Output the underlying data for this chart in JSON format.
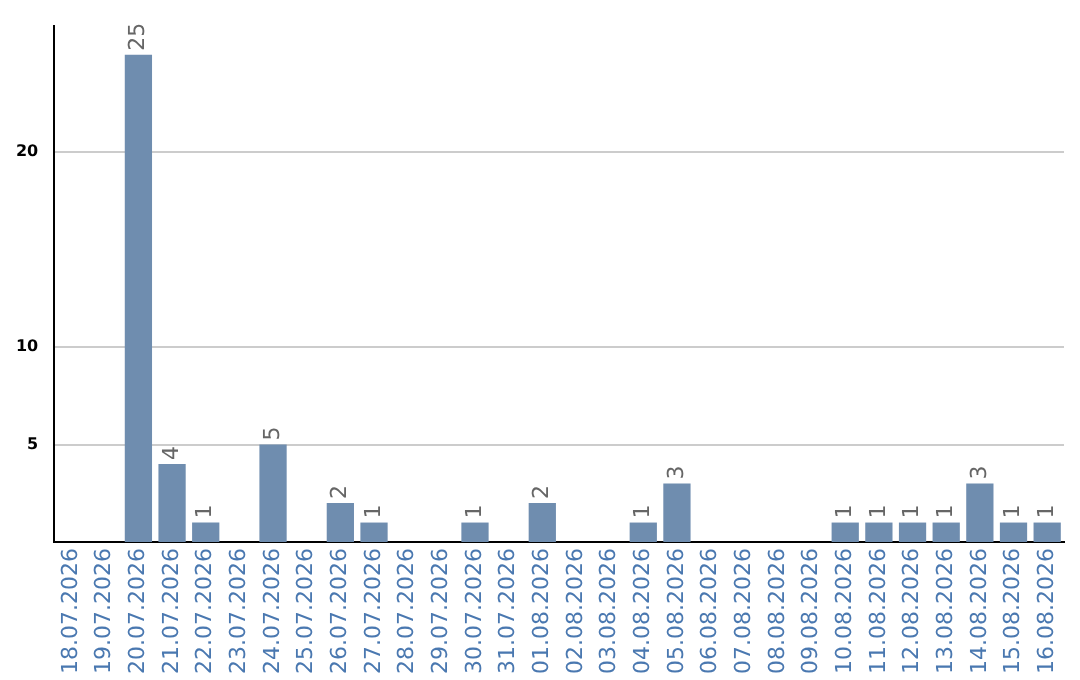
{
  "chart_data": {
    "type": "bar",
    "categories": [
      "18.07.2026",
      "19.07.2026",
      "20.07.2026",
      "21.07.2026",
      "22.07.2026",
      "23.07.2026",
      "24.07.2026",
      "25.07.2026",
      "26.07.2026",
      "27.07.2026",
      "28.07.2026",
      "29.07.2026",
      "30.07.2026",
      "31.07.2026",
      "01.08.2026",
      "02.08.2026",
      "03.08.2026",
      "04.08.2026",
      "05.08.2026",
      "06.08.2026",
      "07.08.2026",
      "08.08.2026",
      "09.08.2026",
      "10.08.2026",
      "11.08.2026",
      "12.08.2026",
      "13.08.2026",
      "14.08.2026",
      "15.08.2026",
      "16.08.2026"
    ],
    "values": [
      0,
      0,
      25,
      4,
      1,
      0,
      5,
      0,
      2,
      1,
      0,
      0,
      1,
      0,
      2,
      0,
      0,
      1,
      3,
      0,
      0,
      0,
      0,
      1,
      1,
      1,
      1,
      3,
      1,
      1
    ],
    "value_labels": [
      null,
      null,
      "25",
      "4",
      "1",
      null,
      "5",
      null,
      "2",
      "1",
      null,
      null,
      "1",
      null,
      "2",
      null,
      null,
      "1",
      "3",
      null,
      null,
      null,
      null,
      "1",
      "1",
      "1",
      "1",
      "3",
      "1",
      "1"
    ],
    "color": "#6f8daf",
    "ylim": [
      0,
      26.5
    ],
    "yticks": [
      5,
      10,
      20
    ],
    "grid": "y",
    "legend": false
  }
}
